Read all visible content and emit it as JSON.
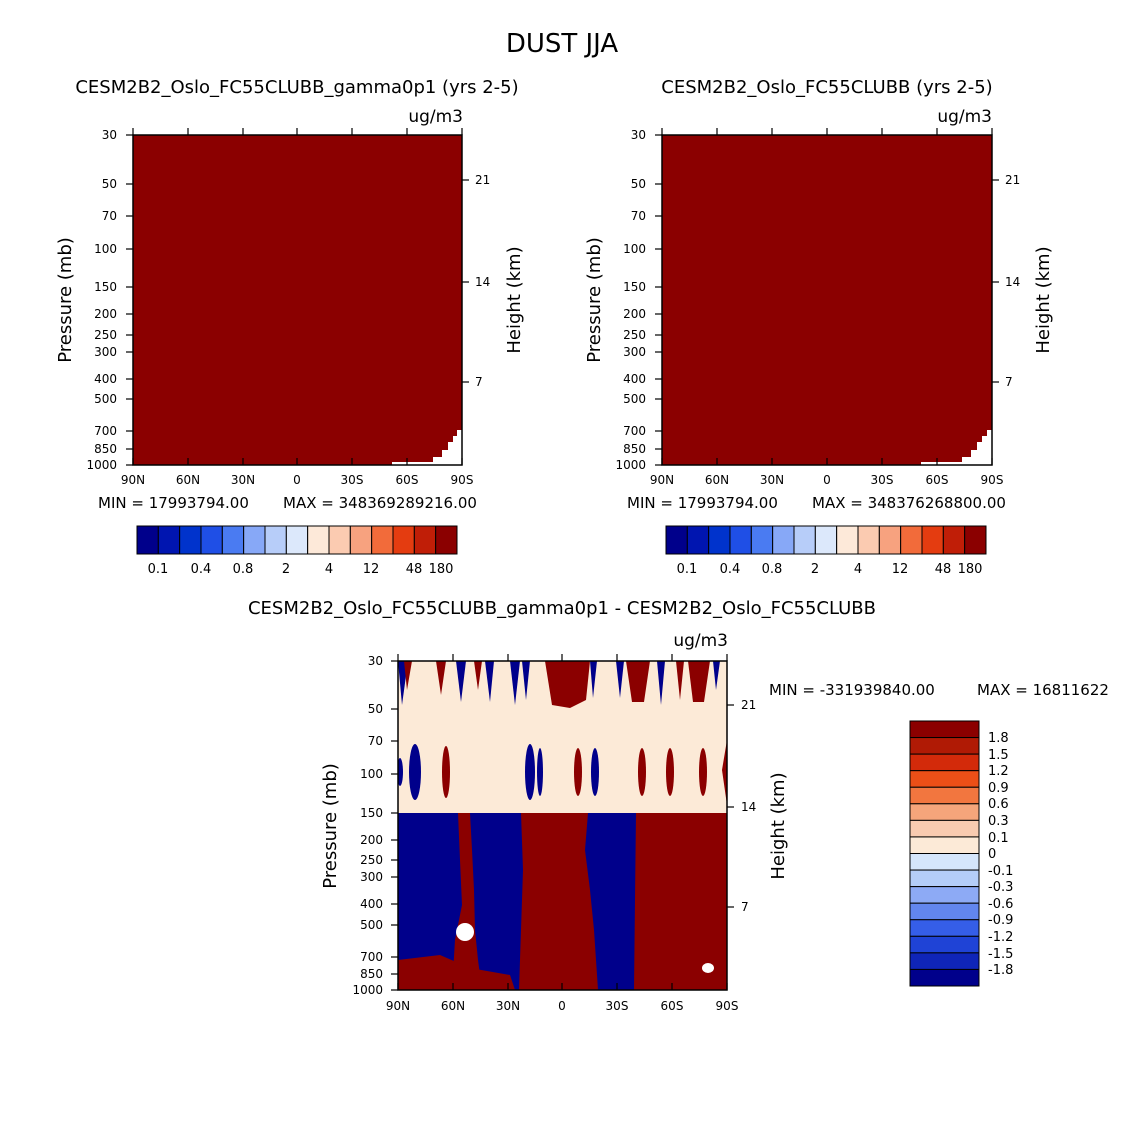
{
  "figure": {
    "title": "DUST JJA"
  },
  "chart_data": [
    {
      "type": "heatmap",
      "title": "CESM2B2_Oslo_FC55CLUBB_gamma0p1 (yrs 2-5)",
      "units": "ug/m3",
      "ylabel": "Pressure (mb)",
      "ylabel_right": "Height (km)",
      "x_ticks": [
        "90N",
        "60N",
        "30N",
        "0",
        "30S",
        "60S",
        "90S"
      ],
      "y_ticks": [
        "30",
        "50",
        "70",
        "100",
        "150",
        "200",
        "250",
        "300",
        "400",
        "500",
        "700",
        "850",
        "1000"
      ],
      "y_ticks_right": [
        "21",
        "14",
        "7"
      ],
      "min_label": "MIN = 17993794.00",
      "max_label": "MAX = 348369289216.00",
      "fill_color": "#8b0000",
      "colorbar_ticks": [
        "0.1",
        "0.4",
        "0.8",
        "2",
        "4",
        "12",
        "48",
        "180"
      ]
    },
    {
      "type": "heatmap",
      "title": "CESM2B2_Oslo_FC55CLUBB (yrs 2-5)",
      "units": "ug/m3",
      "ylabel": "Pressure (mb)",
      "ylabel_right": "Height (km)",
      "x_ticks": [
        "90N",
        "60N",
        "30N",
        "0",
        "30S",
        "60S",
        "90S"
      ],
      "y_ticks": [
        "30",
        "50",
        "70",
        "100",
        "150",
        "200",
        "250",
        "300",
        "400",
        "500",
        "700",
        "850",
        "1000"
      ],
      "y_ticks_right": [
        "21",
        "14",
        "7"
      ],
      "min_label": "MIN = 17993794.00",
      "max_label": "MAX = 348376268800.00",
      "fill_color": "#8b0000",
      "colorbar_ticks": [
        "0.1",
        "0.4",
        "0.8",
        "2",
        "4",
        "12",
        "48",
        "180"
      ]
    },
    {
      "type": "heatmap",
      "title": "CESM2B2_Oslo_FC55CLUBB_gamma0p1 - CESM2B2_Oslo_FC55CLUBB",
      "units": "ug/m3",
      "ylabel": "Pressure (mb)",
      "ylabel_right": "Height (km)",
      "x_ticks": [
        "90N",
        "60N",
        "30N",
        "0",
        "30S",
        "60S",
        "90S"
      ],
      "y_ticks": [
        "30",
        "50",
        "70",
        "100",
        "150",
        "200",
        "250",
        "300",
        "400",
        "500",
        "700",
        "850",
        "1000"
      ],
      "y_ticks_right": [
        "21",
        "14",
        "7"
      ],
      "min_label": "MIN = -331939840.00",
      "max_label": "MAX = 16811622",
      "colorbar_ticks": [
        "1.8",
        "1.5",
        "1.2",
        "0.9",
        "0.6",
        "0.3",
        "0.1",
        "0",
        "-0.1",
        "-0.3",
        "-0.6",
        "-0.9",
        "-1.2",
        "-1.5",
        "-1.8"
      ]
    }
  ],
  "colors": {
    "seq": [
      "#00008b",
      "#0015b0",
      "#0033cc",
      "#1f4fe6",
      "#4a7bf2",
      "#87a8f7",
      "#b7cdf9",
      "#dce8fb",
      "#fde9d9",
      "#fbcbb1",
      "#f7a27f",
      "#f26b3a",
      "#e43c10",
      "#c01e07",
      "#8b0000"
    ],
    "div": [
      "#8b0000",
      "#b01a05",
      "#d32a0a",
      "#ec4f17",
      "#f2763f",
      "#f5a57b",
      "#f8cbb0",
      "#fcead7",
      "#d5e6fb",
      "#b4cdf8",
      "#8daaf5",
      "#6286ee",
      "#355ee8",
      "#1f43d6",
      "#0f25b8",
      "#00008b"
    ]
  }
}
